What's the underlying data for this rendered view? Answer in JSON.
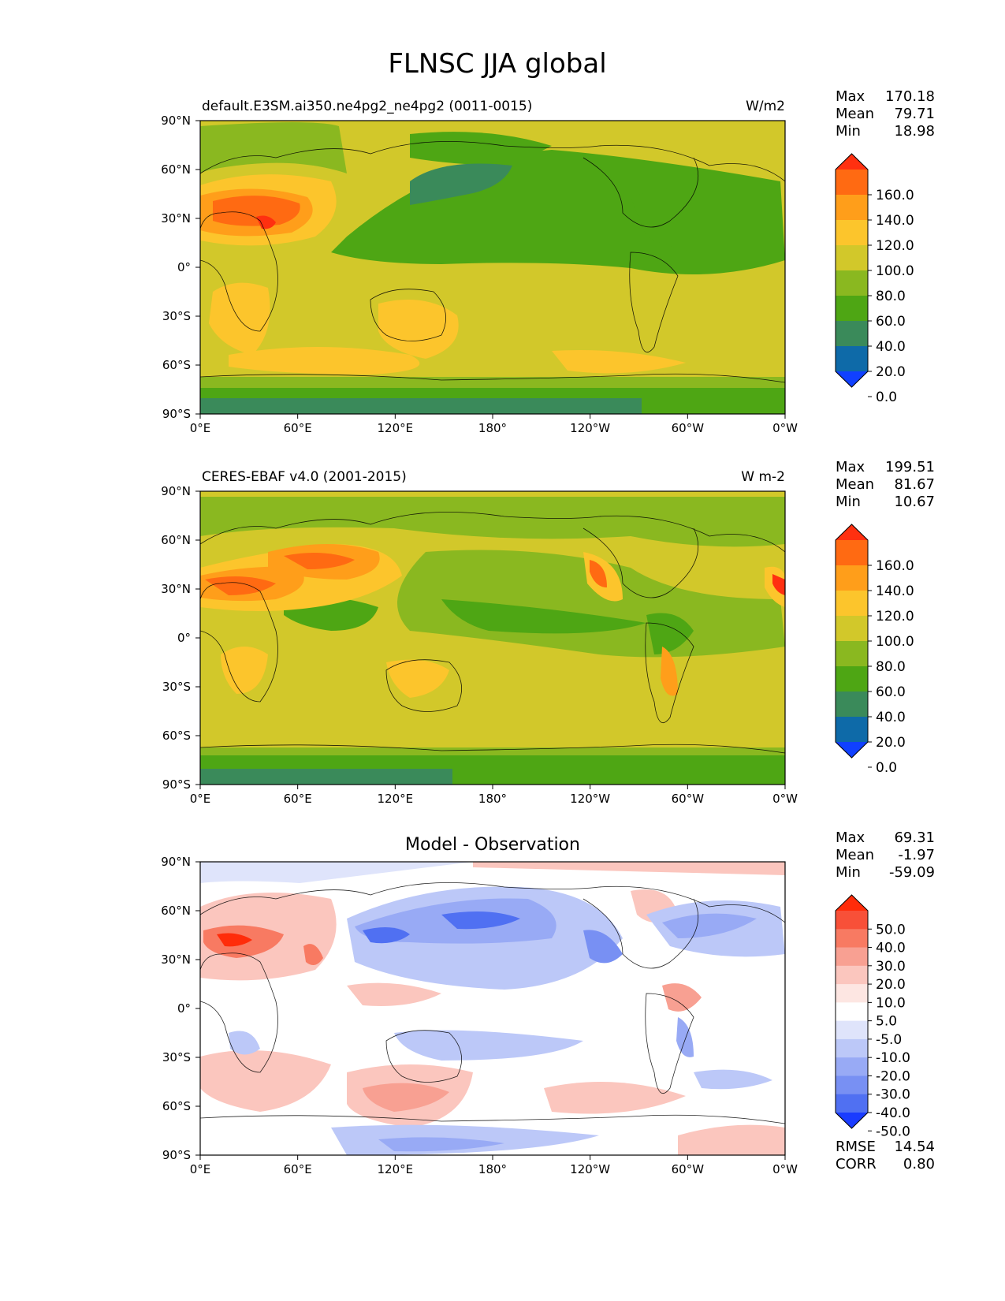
{
  "figure": {
    "title": "FLNSC JJA global"
  },
  "axes": {
    "lat_ticks": [
      "90°N",
      "60°N",
      "30°N",
      "0°",
      "30°S",
      "60°S",
      "90°S"
    ],
    "lon_ticks": [
      "0°E",
      "60°E",
      "120°E",
      "180°",
      "120°W",
      "60°W",
      "0°W"
    ]
  },
  "panels": [
    {
      "id": "model",
      "title_left": "default.E3SM.ai350.ne4pg2_ne4pg2 (0011-0015)",
      "title_center": "",
      "units": "W/m2",
      "stats": [
        {
          "label": "Max",
          "value": "170.18"
        },
        {
          "label": "Mean",
          "value": "79.71"
        },
        {
          "label": "Min",
          "value": "18.98"
        }
      ],
      "colorbar": {
        "labels": [
          "160.0",
          "140.0",
          "120.0",
          "100.0",
          "80.0",
          "60.0",
          "40.0",
          "20.0",
          "0.0"
        ],
        "colors": [
          "#ff3010",
          "#ff6a12",
          "#ff9e1a",
          "#fcc52c",
          "#d2c82a",
          "#8ab820",
          "#4ea614",
          "#3a8a5a",
          "#0e6aa8",
          "#1040ff"
        ]
      },
      "extra_stats": []
    },
    {
      "id": "obs",
      "title_left": "CERES-EBAF v4.0 (2001-2015)",
      "title_center": "",
      "units": "W m-2",
      "stats": [
        {
          "label": "Max",
          "value": "199.51"
        },
        {
          "label": "Mean",
          "value": "81.67"
        },
        {
          "label": "Min",
          "value": "10.67"
        }
      ],
      "colorbar": {
        "labels": [
          "160.0",
          "140.0",
          "120.0",
          "100.0",
          "80.0",
          "60.0",
          "40.0",
          "20.0",
          "0.0"
        ],
        "colors": [
          "#ff3010",
          "#ff6a12",
          "#ff9e1a",
          "#fcc52c",
          "#d2c82a",
          "#8ab820",
          "#4ea614",
          "#3a8a5a",
          "#0e6aa8",
          "#1040ff"
        ]
      },
      "extra_stats": []
    },
    {
      "id": "diff",
      "title_left": "",
      "title_center": "Model - Observation",
      "units": "",
      "stats": [
        {
          "label": "Max",
          "value": "69.31"
        },
        {
          "label": "Mean",
          "value": "-1.97"
        },
        {
          "label": "Min",
          "value": "-59.09"
        }
      ],
      "colorbar": {
        "labels": [
          "50.0",
          "40.0",
          "30.0",
          "20.0",
          "10.0",
          "5.0",
          "-5.0",
          "-10.0",
          "-20.0",
          "-30.0",
          "-40.0",
          "-50.0"
        ],
        "colors": [
          "#ff2c0a",
          "#f85038",
          "#f87a62",
          "#f8a092",
          "#fbc6be",
          "#fde6e2",
          "#ffffff",
          "#dfe4fb",
          "#bcc8f8",
          "#98aaf5",
          "#7890f3",
          "#5070f2",
          "#1a3cff"
        ]
      },
      "extra_stats": [
        {
          "label": "RMSE",
          "value": "14.54"
        },
        {
          "label": "CORR",
          "value": "0.80"
        }
      ]
    }
  ]
}
